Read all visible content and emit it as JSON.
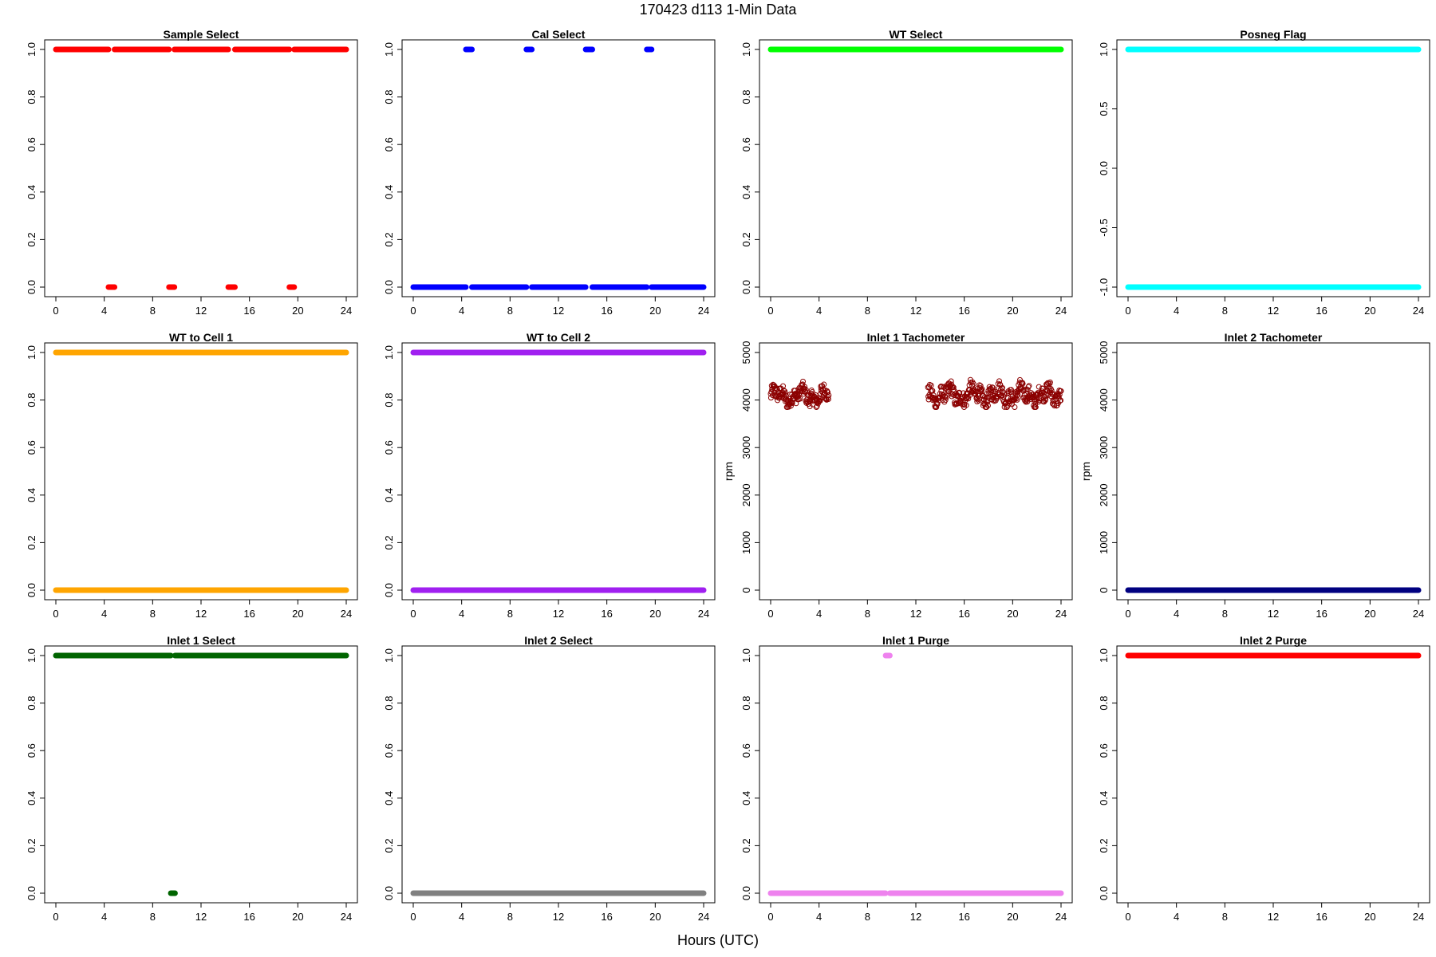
{
  "figure": {
    "title": "170423   d113   1-Min Data",
    "xlabel": "Hours (UTC)"
  },
  "chart_data": [
    {
      "type": "scatter",
      "title": "Sample Select",
      "color": "#ff0000",
      "ylabel": "",
      "xlim": [
        0,
        24
      ],
      "ylim": [
        0,
        1
      ],
      "xticks": [
        0,
        4,
        8,
        12,
        16,
        20,
        24
      ],
      "yticks": [
        "0.0",
        "0.2",
        "0.4",
        "0.6",
        "0.8",
        "1.0"
      ],
      "segments": [
        {
          "y": 1,
          "x": [
            0,
            4.35
          ]
        },
        {
          "y": 1,
          "x": [
            4.85,
            9.35
          ]
        },
        {
          "y": 1,
          "x": [
            9.8,
            14.25
          ]
        },
        {
          "y": 1,
          "x": [
            14.8,
            19.3
          ]
        },
        {
          "y": 1,
          "x": [
            19.7,
            24
          ]
        },
        {
          "y": 0,
          "x": [
            4.35,
            4.85
          ]
        },
        {
          "y": 0,
          "x": [
            9.35,
            9.8
          ]
        },
        {
          "y": 0,
          "x": [
            14.25,
            14.8
          ]
        },
        {
          "y": 0,
          "x": [
            19.3,
            19.7
          ]
        }
      ]
    },
    {
      "type": "scatter",
      "title": "Cal Select",
      "color": "#0000ff",
      "ylabel": "",
      "xlim": [
        0,
        24
      ],
      "ylim": [
        0,
        1
      ],
      "xticks": [
        0,
        4,
        8,
        12,
        16,
        20,
        24
      ],
      "yticks": [
        "0.0",
        "0.2",
        "0.4",
        "0.6",
        "0.8",
        "1.0"
      ],
      "segments": [
        {
          "y": 0,
          "x": [
            0,
            4.35
          ]
        },
        {
          "y": 0,
          "x": [
            4.85,
            9.35
          ]
        },
        {
          "y": 0,
          "x": [
            9.8,
            14.25
          ]
        },
        {
          "y": 0,
          "x": [
            14.8,
            19.3
          ]
        },
        {
          "y": 0,
          "x": [
            19.7,
            24
          ]
        },
        {
          "y": 1,
          "x": [
            4.35,
            4.85
          ]
        },
        {
          "y": 1,
          "x": [
            9.35,
            9.8
          ]
        },
        {
          "y": 1,
          "x": [
            14.25,
            14.8
          ]
        },
        {
          "y": 1,
          "x": [
            19.3,
            19.7
          ]
        }
      ]
    },
    {
      "type": "scatter",
      "title": "WT Select",
      "color": "#00ff00",
      "ylabel": "",
      "xlim": [
        0,
        24
      ],
      "ylim": [
        0,
        1
      ],
      "xticks": [
        0,
        4,
        8,
        12,
        16,
        20,
        24
      ],
      "yticks": [
        "0.0",
        "0.2",
        "0.4",
        "0.6",
        "0.8",
        "1.0"
      ],
      "segments": [
        {
          "y": 1,
          "x": [
            0,
            24
          ]
        }
      ]
    },
    {
      "type": "scatter",
      "title": "Posneg Flag",
      "color": "#00ffff",
      "ylabel": "",
      "xlim": [
        0,
        24
      ],
      "ylim": [
        -1,
        1
      ],
      "xticks": [
        0,
        4,
        8,
        12,
        16,
        20,
        24
      ],
      "yticks": [
        "-1.0",
        "-0.5",
        "0.0",
        "0.5",
        "1.0"
      ],
      "segments": [
        {
          "y": 1,
          "x": [
            0,
            24
          ]
        },
        {
          "y": -1,
          "x": [
            0,
            24
          ]
        }
      ]
    },
    {
      "type": "scatter",
      "title": "WT to Cell 1",
      "color": "#ffa500",
      "ylabel": "",
      "xlim": [
        0,
        24
      ],
      "ylim": [
        0,
        1
      ],
      "xticks": [
        0,
        4,
        8,
        12,
        16,
        20,
        24
      ],
      "yticks": [
        "0.0",
        "0.2",
        "0.4",
        "0.6",
        "0.8",
        "1.0"
      ],
      "segments": [
        {
          "y": 1,
          "x": [
            0,
            24
          ]
        },
        {
          "y": 0,
          "x": [
            0,
            24
          ]
        }
      ]
    },
    {
      "type": "scatter",
      "title": "WT to Cell 2",
      "color": "#a020f0",
      "ylabel": "",
      "xlim": [
        0,
        24
      ],
      "ylim": [
        0,
        1
      ],
      "xticks": [
        0,
        4,
        8,
        12,
        16,
        20,
        24
      ],
      "yticks": [
        "0.0",
        "0.2",
        "0.4",
        "0.6",
        "0.8",
        "1.0"
      ],
      "segments": [
        {
          "y": 1,
          "x": [
            0,
            24
          ]
        },
        {
          "y": 0,
          "x": [
            0,
            24
          ]
        }
      ]
    },
    {
      "type": "scatter",
      "title": "Inlet 1 Tachometer",
      "color": "#8b0000",
      "ylabel": "rpm",
      "marker": "open-circle",
      "xlim": [
        0,
        24
      ],
      "ylim": [
        0,
        5000
      ],
      "xticks": [
        0,
        4,
        8,
        12,
        16,
        20,
        24
      ],
      "yticks": [
        "0",
        "1000",
        "2000",
        "3000",
        "4000",
        "5000"
      ],
      "noise": [
        {
          "x": [
            0,
            4.8
          ],
          "y_low": 3850,
          "y_high": 4400,
          "n": 170
        },
        {
          "x": [
            13.0,
            24
          ],
          "y_low": 3850,
          "y_high": 4450,
          "n": 380
        }
      ]
    },
    {
      "type": "scatter",
      "title": "Inlet 2 Tachometer",
      "color": "#000080",
      "ylabel": "rpm",
      "xlim": [
        0,
        24
      ],
      "ylim": [
        0,
        5000
      ],
      "xticks": [
        0,
        4,
        8,
        12,
        16,
        20,
        24
      ],
      "yticks": [
        "0",
        "1000",
        "2000",
        "3000",
        "4000",
        "5000"
      ],
      "segments": [
        {
          "y": 0,
          "x": [
            0,
            24
          ]
        }
      ]
    },
    {
      "type": "scatter",
      "title": "Inlet 1 Select",
      "color": "#006400",
      "ylabel": "",
      "xlim": [
        0,
        24
      ],
      "ylim": [
        0,
        1
      ],
      "xticks": [
        0,
        4,
        8,
        12,
        16,
        20,
        24
      ],
      "yticks": [
        "0.0",
        "0.2",
        "0.4",
        "0.6",
        "0.8",
        "1.0"
      ],
      "segments": [
        {
          "y": 1,
          "x": [
            0,
            9.5
          ]
        },
        {
          "y": 1,
          "x": [
            9.85,
            24
          ]
        },
        {
          "y": 0,
          "x": [
            9.5,
            9.85
          ]
        }
      ]
    },
    {
      "type": "scatter",
      "title": "Inlet 2 Select",
      "color": "#808080",
      "ylabel": "",
      "xlim": [
        0,
        24
      ],
      "ylim": [
        0,
        1
      ],
      "xticks": [
        0,
        4,
        8,
        12,
        16,
        20,
        24
      ],
      "yticks": [
        "0.0",
        "0.2",
        "0.4",
        "0.6",
        "0.8",
        "1.0"
      ],
      "segments": [
        {
          "y": 0,
          "x": [
            0,
            24
          ]
        }
      ]
    },
    {
      "type": "scatter",
      "title": "Inlet 1 Purge",
      "color": "#ee82ee",
      "ylabel": "",
      "xlim": [
        0,
        24
      ],
      "ylim": [
        0,
        1
      ],
      "xticks": [
        0,
        4,
        8,
        12,
        16,
        20,
        24
      ],
      "yticks": [
        "0.0",
        "0.2",
        "0.4",
        "0.6",
        "0.8",
        "1.0"
      ],
      "segments": [
        {
          "y": 0,
          "x": [
            0,
            9.5
          ]
        },
        {
          "y": 0,
          "x": [
            9.85,
            24
          ]
        },
        {
          "y": 1,
          "x": [
            9.5,
            9.85
          ]
        }
      ]
    },
    {
      "type": "scatter",
      "title": "Inlet 2 Purge",
      "color": "#ff0000",
      "ylabel": "",
      "xlim": [
        0,
        24
      ],
      "ylim": [
        0,
        1
      ],
      "xticks": [
        0,
        4,
        8,
        12,
        16,
        20,
        24
      ],
      "yticks": [
        "0.0",
        "0.2",
        "0.4",
        "0.6",
        "0.8",
        "1.0"
      ],
      "segments": [
        {
          "y": 1,
          "x": [
            0,
            24
          ]
        }
      ]
    }
  ]
}
